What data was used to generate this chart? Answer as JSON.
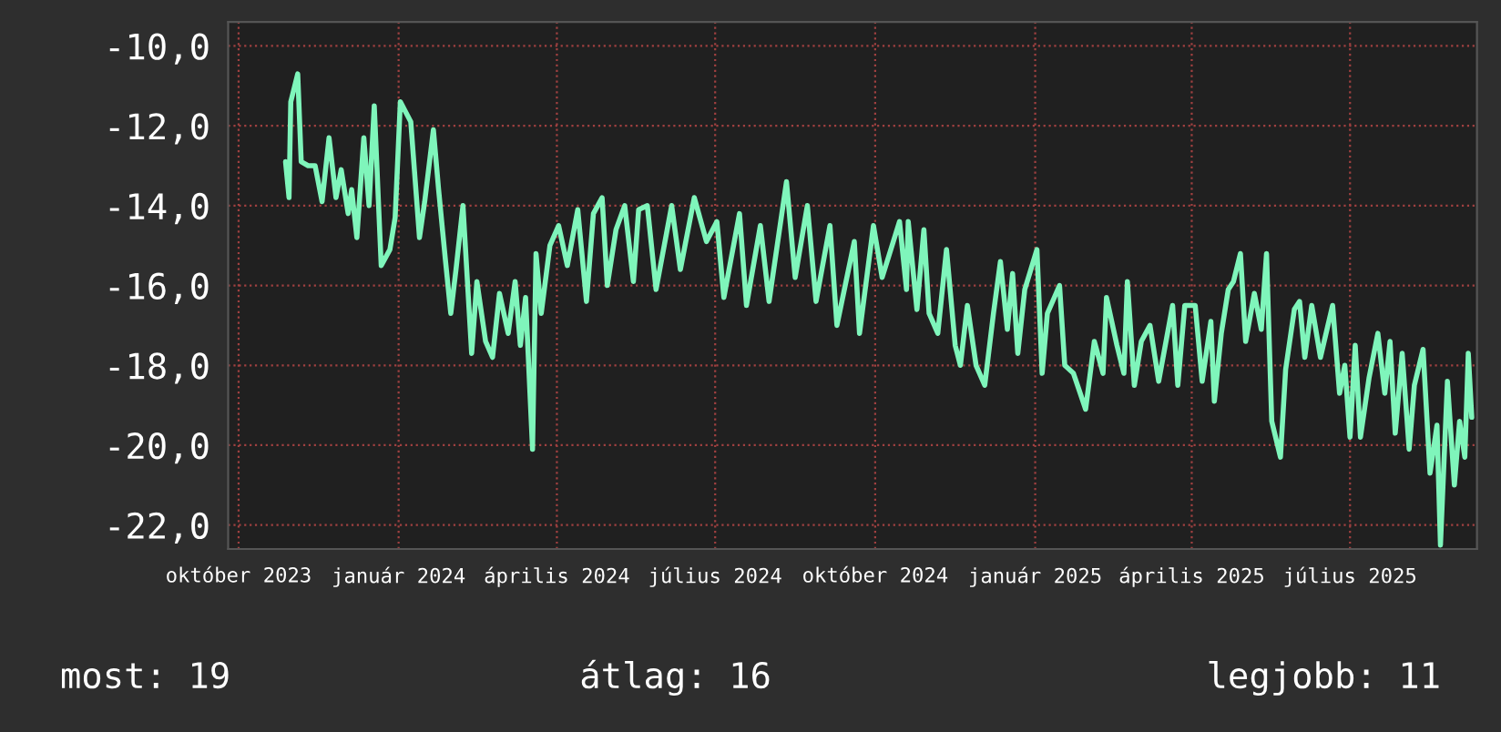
{
  "chart_data": {
    "type": "line",
    "x": [
      "2023-10-28",
      "2023-10-30",
      "2023-10-31",
      "2023-11-04",
      "2023-11-06",
      "2023-11-10",
      "2023-11-14",
      "2023-11-18",
      "2023-11-22",
      "2023-11-26",
      "2023-11-29",
      "2023-12-03",
      "2023-12-05",
      "2023-12-08",
      "2023-12-12",
      "2023-12-15",
      "2023-12-18",
      "2023-12-22",
      "2023-12-27",
      "2023-12-30",
      "2024-01-02",
      "2024-01-08",
      "2024-01-13",
      "2024-01-16",
      "2024-01-21",
      "2024-01-24",
      "2024-01-28",
      "2024-01-31",
      "2024-02-03",
      "2024-02-07",
      "2024-02-12",
      "2024-02-15",
      "2024-02-20",
      "2024-02-24",
      "2024-02-28",
      "2024-03-04",
      "2024-03-08",
      "2024-03-11",
      "2024-03-14",
      "2024-03-18",
      "2024-03-20",
      "2024-03-23",
      "2024-03-28",
      "2024-04-02",
      "2024-04-07",
      "2024-04-13",
      "2024-04-18",
      "2024-04-22",
      "2024-04-27",
      "2024-04-30",
      "2024-05-05",
      "2024-05-10",
      "2024-05-15",
      "2024-05-18",
      "2024-05-23",
      "2024-05-28",
      "2024-06-06",
      "2024-06-11",
      "2024-06-19",
      "2024-06-26",
      "2024-07-02",
      "2024-07-06",
      "2024-07-15",
      "2024-07-19",
      "2024-07-27",
      "2024-08-01",
      "2024-08-11",
      "2024-08-16",
      "2024-08-23",
      "2024-08-28",
      "2024-09-05",
      "2024-09-09",
      "2024-09-19",
      "2024-09-22",
      "2024-09-30",
      "2024-10-05",
      "2024-10-15",
      "2024-10-19",
      "2024-10-20",
      "2024-10-25",
      "2024-10-29",
      "2024-11-01",
      "2024-11-06",
      "2024-11-11",
      "2024-11-16",
      "2024-11-19",
      "2024-11-23",
      "2024-11-28",
      "2024-12-03",
      "2024-12-08",
      "2024-12-12",
      "2024-12-16",
      "2024-12-19",
      "2024-12-22",
      "2024-12-26",
      "2025-01-02",
      "2025-01-05",
      "2025-01-08",
      "2025-01-15",
      "2025-01-18",
      "2025-01-23",
      "2025-01-30",
      "2025-02-04",
      "2025-02-09",
      "2025-02-11",
      "2025-02-17",
      "2025-02-21",
      "2025-02-23",
      "2025-02-27",
      "2025-03-03",
      "2025-03-08",
      "2025-03-13",
      "2025-03-21",
      "2025-03-24",
      "2025-03-28",
      "2025-04-03",
      "2025-04-07",
      "2025-04-12",
      "2025-04-14",
      "2025-04-18",
      "2025-04-22",
      "2025-04-25",
      "2025-04-29",
      "2025-05-02",
      "2025-05-07",
      "2025-05-11",
      "2025-05-14",
      "2025-05-17",
      "2025-05-22",
      "2025-05-25",
      "2025-05-30",
      "2025-06-02",
      "2025-06-05",
      "2025-06-09",
      "2025-06-14",
      "2025-06-21",
      "2025-06-25",
      "2025-06-28",
      "2025-07-01",
      "2025-07-04",
      "2025-07-07",
      "2025-07-12",
      "2025-07-17",
      "2025-07-21",
      "2025-07-24",
      "2025-07-27",
      "2025-07-31",
      "2025-08-04",
      "2025-08-07",
      "2025-08-12",
      "2025-08-16",
      "2025-08-20",
      "2025-08-22",
      "2025-08-26",
      "2025-08-30",
      "2025-09-02",
      "2025-09-05",
      "2025-09-07",
      "2025-09-09"
    ],
    "series": [
      {
        "color": "#7ff5bb",
        "values": [
          -12.9,
          -13.8,
          -11.4,
          -10.7,
          -12.9,
          -13.0,
          -13.0,
          -13.9,
          -12.3,
          -13.8,
          -13.1,
          -14.2,
          -13.6,
          -14.8,
          -12.3,
          -14.0,
          -11.5,
          -15.5,
          -15.1,
          -14.3,
          -11.4,
          -11.9,
          -14.8,
          -13.9,
          -12.1,
          -13.6,
          -15.4,
          -16.7,
          -15.6,
          -14.0,
          -17.7,
          -15.9,
          -17.4,
          -17.8,
          -16.2,
          -17.2,
          -15.9,
          -17.5,
          -16.3,
          -20.1,
          -15.2,
          -16.7,
          -15.0,
          -14.5,
          -15.5,
          -14.1,
          -16.4,
          -14.2,
          -13.8,
          -16.0,
          -14.6,
          -14.0,
          -15.9,
          -14.1,
          -14.0,
          -16.1,
          -14.0,
          -15.6,
          -13.8,
          -14.9,
          -14.4,
          -16.3,
          -14.2,
          -16.5,
          -14.5,
          -16.4,
          -13.4,
          -15.8,
          -14.0,
          -16.4,
          -14.5,
          -17.0,
          -14.9,
          -17.2,
          -14.5,
          -15.8,
          -14.4,
          -16.1,
          -14.4,
          -16.6,
          -14.6,
          -16.7,
          -17.2,
          -15.1,
          -17.5,
          -18.0,
          -16.5,
          -18.0,
          -18.5,
          -16.7,
          -15.4,
          -17.1,
          -15.7,
          -17.7,
          -16.1,
          -15.1,
          -18.2,
          -16.7,
          -16.0,
          -18.0,
          -18.2,
          -19.1,
          -17.4,
          -18.2,
          -16.3,
          -17.5,
          -18.2,
          -15.9,
          -18.5,
          -17.4,
          -17.0,
          -18.4,
          -16.5,
          -18.5,
          -16.5,
          -16.5,
          -18.4,
          -16.9,
          -18.9,
          -17.2,
          -16.1,
          -15.9,
          -15.2,
          -17.4,
          -16.2,
          -17.1,
          -15.2,
          -19.4,
          -20.3,
          -18.1,
          -16.6,
          -16.4,
          -17.8,
          -16.5,
          -17.8,
          -16.5,
          -18.7,
          -18.0,
          -19.8,
          -17.5,
          -19.8,
          -18.3,
          -17.2,
          -18.7,
          -17.4,
          -19.7,
          -17.7,
          -20.1,
          -18.5,
          -17.6,
          -20.7,
          -19.5,
          -22.5,
          -18.4,
          -21.0,
          -19.4,
          -20.3,
          -17.7,
          -19.3
        ]
      }
    ],
    "xlim": [
      "2023-09-25",
      "2025-09-12"
    ],
    "xticks": [
      {
        "value": "2023-10-01",
        "label": "október 2023"
      },
      {
        "value": "2024-01-01",
        "label": "január 2024"
      },
      {
        "value": "2024-04-01",
        "label": "április 2024"
      },
      {
        "value": "2024-07-01",
        "label": "július 2024"
      },
      {
        "value": "2024-10-01",
        "label": "október 2024"
      },
      {
        "value": "2025-01-01",
        "label": "január 2025"
      },
      {
        "value": "2025-04-01",
        "label": "április 2025"
      },
      {
        "value": "2025-07-01",
        "label": "július 2025"
      }
    ],
    "ylim": [
      -22.6,
      -9.4
    ],
    "yticks": [
      {
        "value": -10,
        "label": "-10,0"
      },
      {
        "value": -12,
        "label": "-12,0"
      },
      {
        "value": -14,
        "label": "-14,0"
      },
      {
        "value": -16,
        "label": "-16,0"
      },
      {
        "value": -18,
        "label": "-18,0"
      },
      {
        "value": -20,
        "label": "-20,0"
      },
      {
        "value": -22,
        "label": "-22,0"
      }
    ],
    "grid": true,
    "annotations": [
      "most: 19",
      "átlag: 16",
      "legjobb: 11"
    ]
  }
}
